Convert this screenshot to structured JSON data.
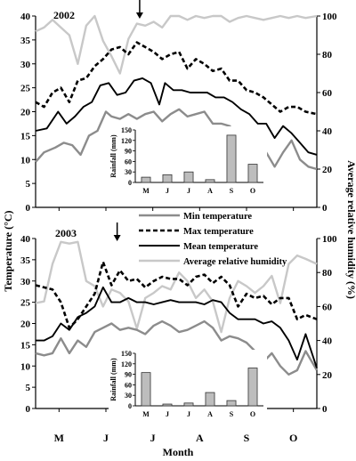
{
  "colors": {
    "min_temp": "#8c8c8c",
    "max_temp": "#000000",
    "mean_temp": "#000000",
    "humidity": "#c8c8c8",
    "bar_fill": "#bdbdbd",
    "bar_stroke": "#333333"
  },
  "axes": {
    "y_left_label": "Temperature (°C)",
    "y_right_label": "Average relative humidity (%)",
    "x_label": "Month",
    "months": [
      "M",
      "J",
      "J",
      "A",
      "S",
      "O"
    ],
    "y_left_ticks": [
      "0",
      "5",
      "10",
      "15",
      "20",
      "25",
      "30",
      "35",
      "40"
    ],
    "y_right_ticks": [
      "0",
      "20",
      "40",
      "60",
      "80",
      "100"
    ]
  },
  "legend": {
    "min": "Min temperature",
    "max": "Max temperature",
    "mean": "Mean temperature",
    "humidity": "Average relative humidity"
  },
  "chart_data": [
    {
      "type": "line",
      "title": "2002",
      "xlabel": "Month",
      "ylabel": "Temperature (°C)",
      "y2label": "Average relative humidity (%)",
      "ylim": [
        0,
        40
      ],
      "y2lim": [
        0,
        100
      ],
      "arrow_at_x": 0.37,
      "series": [
        {
          "name": "Min temperature",
          "axis": "left",
          "style": "min",
          "x": [
            0,
            0.03,
            0.07,
            0.1,
            0.13,
            0.16,
            0.19,
            0.22,
            0.25,
            0.27,
            0.3,
            0.33,
            0.36,
            0.39,
            0.42,
            0.45,
            0.48,
            0.51,
            0.54,
            0.57,
            0.6,
            0.63,
            0.66,
            0.69,
            0.72,
            0.76,
            0.79,
            0.82,
            0.85,
            0.88,
            0.91,
            0.94,
            0.97,
            1.0
          ],
          "y": [
            9.5,
            11.5,
            12.5,
            13.5,
            13,
            11,
            15,
            16,
            20,
            19,
            18.5,
            19.5,
            18.5,
            19.5,
            20,
            18,
            19.5,
            20.5,
            19,
            19.5,
            20,
            17.5,
            17.5,
            17,
            15,
            10.5,
            15.5,
            11.5,
            8.5,
            11.5,
            14,
            10,
            8.5,
            8
          ]
        },
        {
          "name": "Max temperature",
          "axis": "left",
          "style": "max",
          "x": [
            0,
            0.03,
            0.06,
            0.09,
            0.12,
            0.15,
            0.18,
            0.21,
            0.24,
            0.27,
            0.3,
            0.33,
            0.36,
            0.39,
            0.42,
            0.45,
            0.48,
            0.51,
            0.54,
            0.57,
            0.6,
            0.63,
            0.66,
            0.69,
            0.72,
            0.75,
            0.78,
            0.81,
            0.84,
            0.87,
            0.9,
            0.93,
            0.96,
            1.0
          ],
          "y": [
            22,
            21,
            24,
            25,
            22,
            26.5,
            27,
            29.5,
            31,
            33,
            33.5,
            32,
            34.5,
            33.5,
            32.5,
            31,
            32,
            32.5,
            29,
            31,
            30,
            28.5,
            29,
            26.5,
            26.5,
            24.5,
            24,
            23,
            21.5,
            20,
            21,
            21,
            20,
            19.5
          ]
        },
        {
          "name": "Mean temperature",
          "axis": "left",
          "style": "mean",
          "x": [
            0,
            0.04,
            0.08,
            0.11,
            0.14,
            0.17,
            0.2,
            0.23,
            0.26,
            0.29,
            0.32,
            0.35,
            0.38,
            0.41,
            0.44,
            0.46,
            0.49,
            0.52,
            0.55,
            0.58,
            0.61,
            0.64,
            0.67,
            0.7,
            0.73,
            0.76,
            0.79,
            0.82,
            0.85,
            0.88,
            0.91,
            0.94,
            0.97,
            1.0
          ],
          "y": [
            16,
            16.5,
            20,
            17.5,
            19,
            21,
            22,
            25.5,
            26,
            23.5,
            24,
            26.5,
            27,
            26,
            21.5,
            26,
            24.5,
            24.5,
            24,
            24,
            24,
            23,
            23,
            22,
            20.5,
            19.5,
            17.5,
            17.5,
            14.5,
            17,
            15.5,
            13.5,
            11.5,
            11
          ]
        },
        {
          "name": "Average relative humidity",
          "axis": "right",
          "style": "humidity",
          "x": [
            0,
            0.03,
            0.06,
            0.09,
            0.12,
            0.15,
            0.18,
            0.21,
            0.24,
            0.27,
            0.3,
            0.33,
            0.36,
            0.39,
            0.42,
            0.45,
            0.48,
            0.51,
            0.54,
            0.57,
            0.6,
            0.63,
            0.66,
            0.69,
            0.72,
            0.75,
            0.78,
            0.81,
            0.84,
            0.87,
            0.9,
            0.93,
            0.96,
            1.0
          ],
          "y": [
            92,
            94,
            98,
            94,
            90,
            75,
            95,
            100,
            87,
            79,
            70,
            88,
            96,
            95,
            97,
            94,
            100,
            100,
            98,
            100,
            99,
            100,
            100,
            97,
            99,
            100,
            99,
            98,
            99,
            100,
            99,
            100,
            99,
            100
          ]
        }
      ],
      "rainfall": {
        "ylabel": "Rainfall (mm)",
        "categories": [
          "M",
          "J",
          "J",
          "A",
          "S",
          "O"
        ],
        "values": [
          15,
          22,
          30,
          8,
          135,
          52
        ],
        "ylim": [
          0,
          150
        ],
        "ticks": [
          "0",
          "30",
          "60",
          "90",
          "120",
          "150"
        ]
      }
    },
    {
      "type": "line",
      "title": "2003",
      "xlabel": "Month",
      "ylabel": "Temperature (°C)",
      "y2label": "Average relative humidity (%)",
      "ylim": [
        0,
        40
      ],
      "y2lim": [
        0,
        100
      ],
      "arrow_at_x": 0.29,
      "series": [
        {
          "name": "Min temperature",
          "axis": "left",
          "style": "min",
          "x": [
            0,
            0.03,
            0.06,
            0.09,
            0.12,
            0.15,
            0.18,
            0.21,
            0.24,
            0.27,
            0.3,
            0.33,
            0.36,
            0.39,
            0.42,
            0.45,
            0.48,
            0.51,
            0.54,
            0.57,
            0.6,
            0.63,
            0.66,
            0.69,
            0.72,
            0.75,
            0.78,
            0.81,
            0.84,
            0.87,
            0.9,
            0.93,
            0.96,
            1.0
          ],
          "y": [
            13,
            12.5,
            13,
            16.5,
            13,
            16,
            14.5,
            18,
            19,
            20,
            18.5,
            19,
            18.5,
            17.5,
            19.5,
            20.5,
            19.5,
            18,
            18.5,
            19.5,
            20.5,
            19,
            16,
            17,
            16.5,
            15.5,
            13.5,
            11,
            13,
            10,
            8,
            9,
            13.5,
            9
          ]
        },
        {
          "name": "Max temperature",
          "axis": "left",
          "style": "max",
          "x": [
            0,
            0.03,
            0.06,
            0.09,
            0.12,
            0.15,
            0.18,
            0.21,
            0.24,
            0.27,
            0.3,
            0.33,
            0.36,
            0.39,
            0.42,
            0.45,
            0.48,
            0.51,
            0.54,
            0.57,
            0.6,
            0.63,
            0.66,
            0.69,
            0.72,
            0.75,
            0.78,
            0.81,
            0.84,
            0.87,
            0.9,
            0.93,
            0.96,
            1.0
          ],
          "y": [
            29,
            28.5,
            28,
            25,
            19,
            21,
            24,
            27,
            34.5,
            29,
            32.5,
            30,
            30.5,
            28.5,
            30,
            31,
            30.5,
            30.5,
            29,
            31,
            31.5,
            29.5,
            31,
            29,
            24,
            27,
            26,
            26.5,
            24.5,
            26,
            26,
            21,
            22,
            21
          ]
        },
        {
          "name": "Mean temperature",
          "axis": "left",
          "style": "mean",
          "x": [
            0,
            0.03,
            0.06,
            0.09,
            0.12,
            0.15,
            0.18,
            0.21,
            0.24,
            0.27,
            0.3,
            0.33,
            0.36,
            0.39,
            0.42,
            0.45,
            0.48,
            0.51,
            0.54,
            0.57,
            0.6,
            0.63,
            0.66,
            0.69,
            0.72,
            0.75,
            0.78,
            0.81,
            0.84,
            0.87,
            0.9,
            0.93,
            0.96,
            1.0
          ],
          "y": [
            16,
            16,
            17,
            20,
            18.5,
            21.5,
            22.5,
            24,
            28.5,
            25,
            25,
            26,
            25,
            25,
            24.5,
            25,
            25.5,
            25,
            25,
            25,
            24.5,
            25.5,
            25,
            22.5,
            21,
            21,
            21,
            20,
            20.5,
            19,
            16,
            11.5,
            17.5,
            9.5
          ]
        },
        {
          "name": "Average relative humidity",
          "axis": "right",
          "style": "humidity",
          "x": [
            0,
            0.03,
            0.06,
            0.09,
            0.12,
            0.15,
            0.18,
            0.21,
            0.24,
            0.27,
            0.3,
            0.33,
            0.36,
            0.39,
            0.42,
            0.45,
            0.48,
            0.51,
            0.54,
            0.57,
            0.6,
            0.63,
            0.66,
            0.69,
            0.72,
            0.75,
            0.78,
            0.81,
            0.84,
            0.87,
            0.9,
            0.93,
            0.96,
            1.0
          ],
          "y": [
            62,
            63,
            85,
            98,
            97,
            98,
            75,
            72,
            60,
            70,
            68,
            63,
            47,
            65,
            68,
            72,
            70,
            80,
            75,
            65,
            70,
            63,
            45,
            65,
            75,
            72,
            68,
            72,
            78,
            62,
            85,
            90,
            88,
            85
          ]
        }
      ],
      "rainfall": {
        "ylabel": "Rainfall (mm)",
        "categories": [
          "M",
          "J",
          "J",
          "A",
          "S",
          "O"
        ],
        "values": [
          95,
          5,
          8,
          38,
          15,
          108
        ],
        "ylim": [
          0,
          150
        ],
        "ticks": [
          "0",
          "30",
          "60",
          "90",
          "120",
          "150"
        ]
      }
    }
  ]
}
